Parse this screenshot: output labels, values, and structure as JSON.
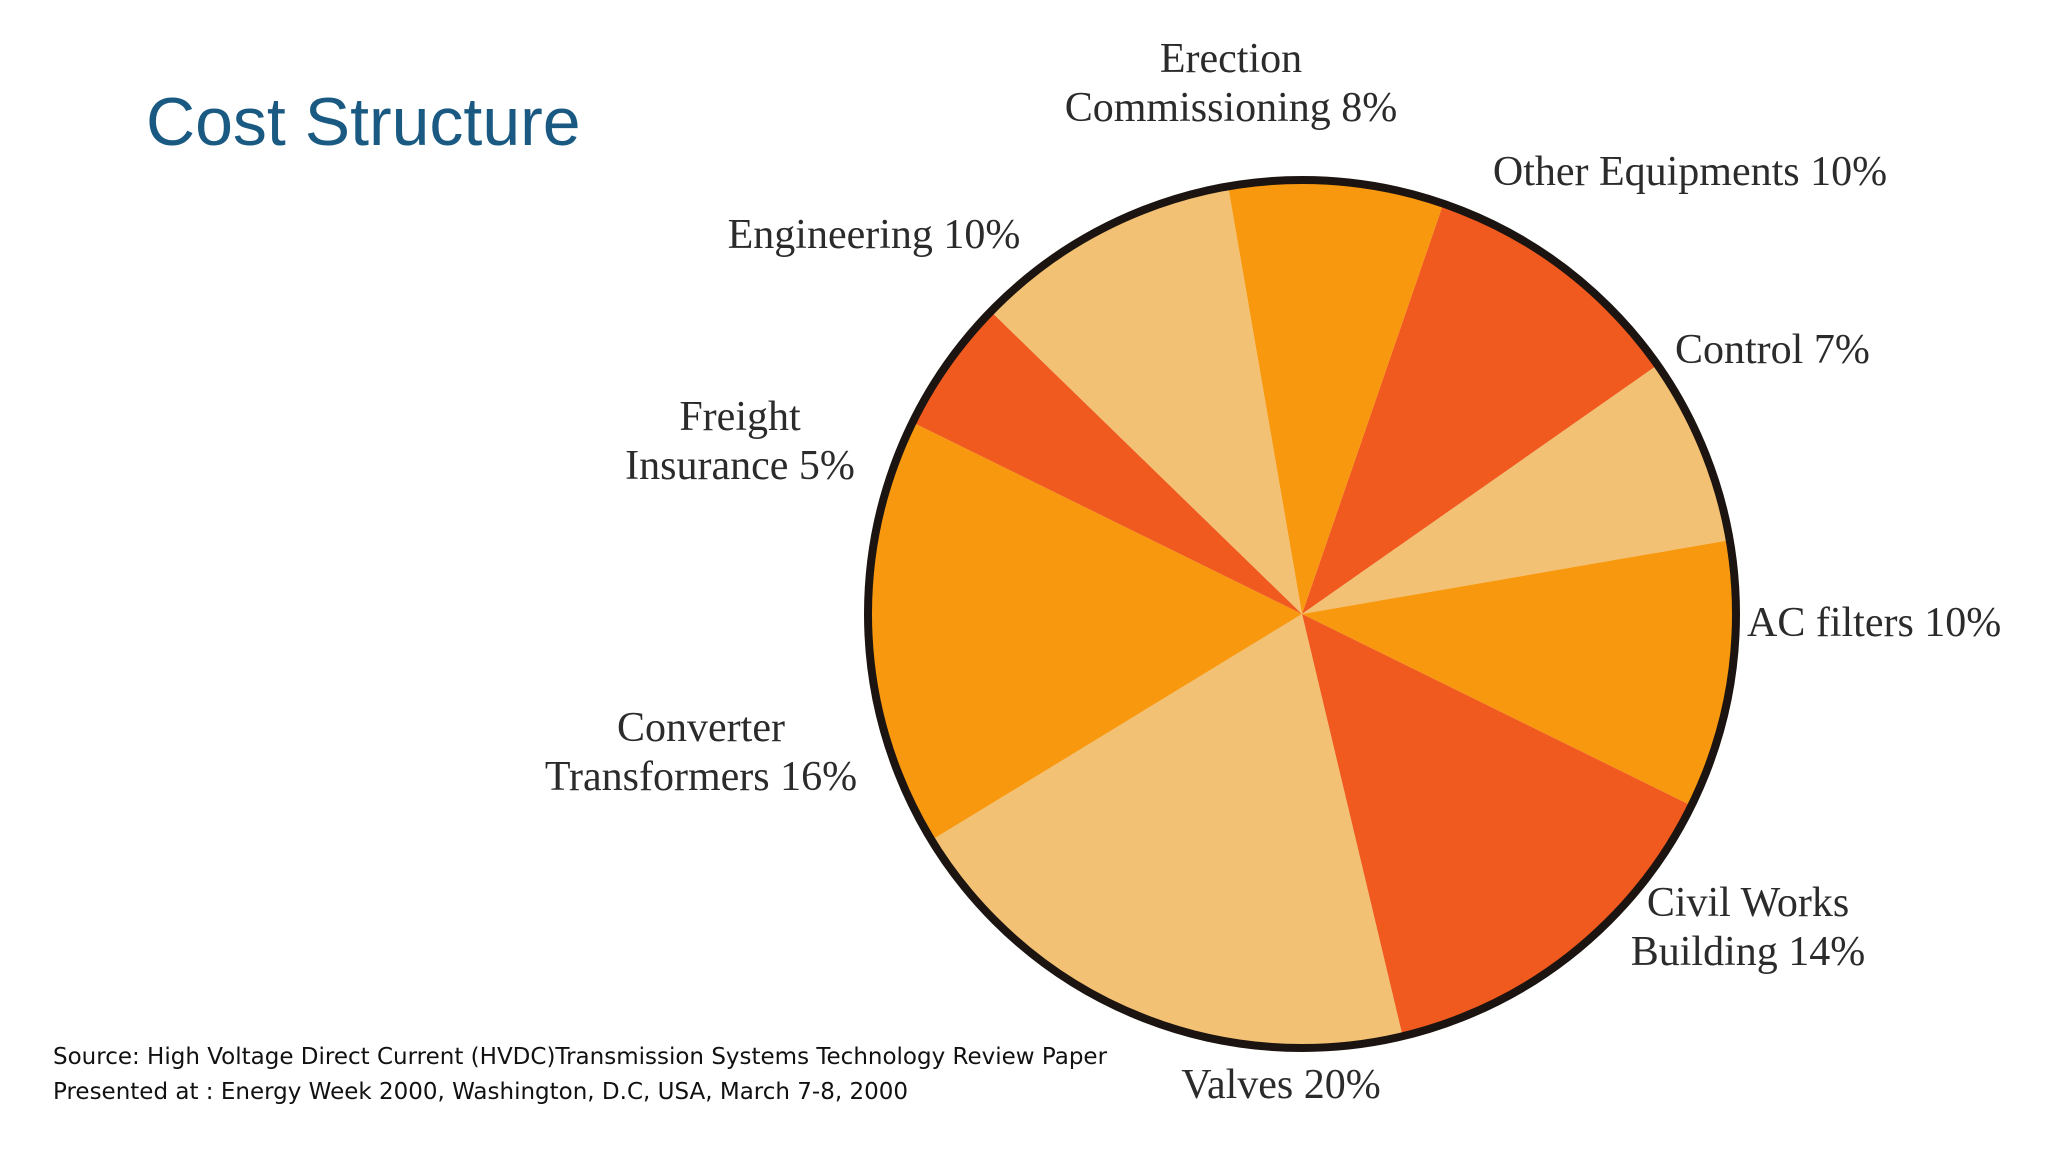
{
  "slide": {
    "title": "Cost Structure",
    "source_lines": [
      "Source: High Voltage Direct Current (HVDC)Transmission Systems Technology Review Paper",
      "Presented at : Energy Week 2000, Washington, D.C, USA, March 7-8, 2000"
    ]
  },
  "chart_data": {
    "type": "pie",
    "unit": "%",
    "slices": [
      {
        "label": [
          "Other Equipments 10%"
        ],
        "value": 10,
        "color": "#f05a1e"
      },
      {
        "label": [
          "Control 7%"
        ],
        "value": 7,
        "color": "#f2c173"
      },
      {
        "label": [
          "AC filters 10%"
        ],
        "value": 10,
        "color": "#f7980e"
      },
      {
        "label": [
          "Civil Works",
          "Building 14%"
        ],
        "value": 14,
        "color": "#f05a1e"
      },
      {
        "label": [
          "Valves 20%"
        ],
        "value": 20,
        "color": "#f2c173"
      },
      {
        "label": [
          "Converter",
          "Transformers 16%"
        ],
        "value": 16,
        "color": "#f7980e"
      },
      {
        "label": [
          "Freight",
          "Insurance 5%"
        ],
        "value": 5,
        "color": "#f05a1e"
      },
      {
        "label": [
          "Engineering 10%"
        ],
        "value": 10,
        "color": "#f2c173"
      },
      {
        "label": [
          "Erection",
          "Commissioning 8%"
        ],
        "value": 8,
        "color": "#f7980e"
      }
    ],
    "outline_color": "#1c1410"
  }
}
